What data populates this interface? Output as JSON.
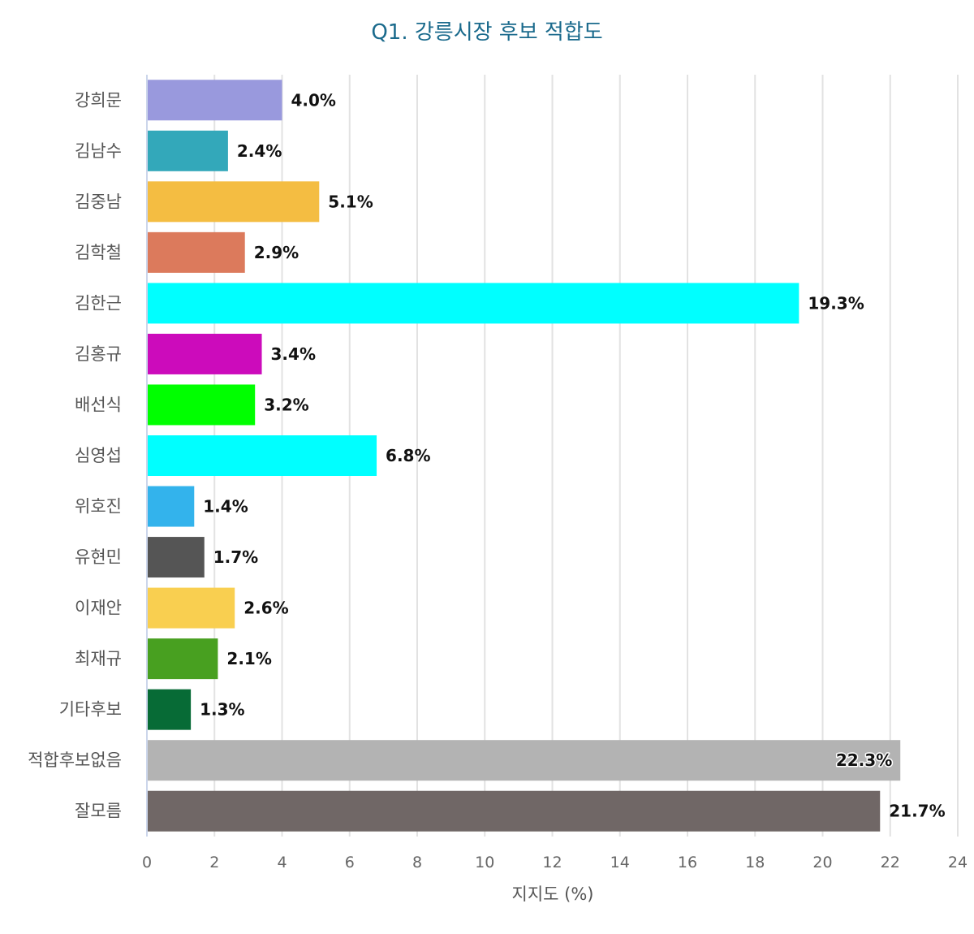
{
  "chart_data": {
    "type": "bar",
    "orientation": "horizontal",
    "title": "Q1. 강릉시장 후보 적합도",
    "xlabel": "지지도 (%)",
    "ylabel": "",
    "xlim": [
      0,
      24
    ],
    "xticks": [
      0,
      2,
      4,
      6,
      8,
      10,
      12,
      14,
      16,
      18,
      20,
      22,
      24
    ],
    "grid": true,
    "legend": "none",
    "categories": [
      "강희문",
      "김남수",
      "김중남",
      "김학철",
      "김한근",
      "김홍규",
      "배선식",
      "심영섭",
      "위호진",
      "유현민",
      "이재안",
      "최재규",
      "기타후보",
      "적합후보없음",
      "잘모름"
    ],
    "values": [
      4.0,
      2.4,
      5.1,
      2.9,
      19.3,
      3.4,
      3.2,
      6.8,
      1.4,
      1.7,
      2.6,
      2.1,
      1.3,
      22.3,
      21.7
    ],
    "value_labels": [
      "4.0%",
      "2.4%",
      "5.1%",
      "2.9%",
      "19.3%",
      "3.4%",
      "3.2%",
      "6.8%",
      "1.4%",
      "1.7%",
      "2.6%",
      "2.1%",
      "1.3%",
      "22.3%",
      "21.7%"
    ],
    "colors": [
      "#9999dd",
      "#33a8ba",
      "#f4bd42",
      "#dc7a5c",
      "#00ffff",
      "#cc0bbb",
      "#00ff00",
      "#00ffff",
      "#33b3ec",
      "#555555",
      "#f9cf50",
      "#48a020",
      "#076b36",
      "#b3b3b3",
      "#706766"
    ]
  }
}
